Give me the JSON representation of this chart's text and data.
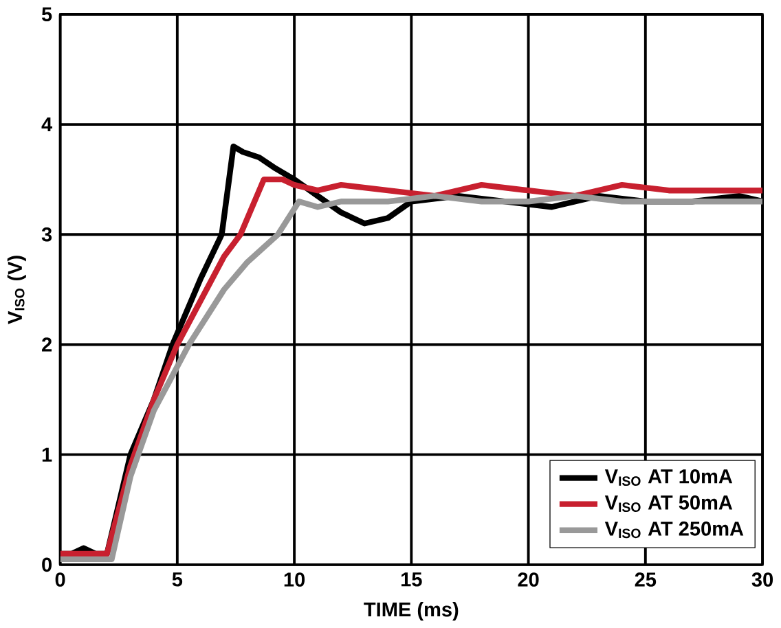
{
  "chart_data": {
    "type": "line",
    "xlabel": "TIME (ms)",
    "ylabel": "V$_{ISO}$ (V)",
    "xlim": [
      0,
      30
    ],
    "ylim": [
      0,
      5
    ],
    "xticks": [
      0,
      5,
      10,
      15,
      20,
      25,
      30
    ],
    "yticks": [
      0,
      1,
      2,
      3,
      4,
      5
    ],
    "grid": true,
    "legend": "bottom right",
    "line_style": "solid",
    "marker": "none",
    "series": [
      {
        "name": "V$_{ISO}$ AT 10mA",
        "color": "#000000",
        "x": [
          0,
          0.5,
          1,
          1.5,
          2,
          3,
          4,
          4.8,
          6,
          6.9,
          7.4,
          7.8,
          8.5,
          9.2,
          10,
          11,
          12,
          13,
          14,
          15,
          17,
          19,
          21,
          23,
          25,
          27,
          29,
          30
        ],
        "values": [
          0.1,
          0.1,
          0.15,
          0.1,
          0.1,
          1.0,
          1.5,
          2.0,
          2.6,
          3.0,
          3.8,
          3.75,
          3.7,
          3.6,
          3.5,
          3.35,
          3.2,
          3.1,
          3.15,
          3.3,
          3.35,
          3.3,
          3.25,
          3.35,
          3.3,
          3.3,
          3.35,
          3.3
        ]
      },
      {
        "name": "V$_{ISO}$ AT 50mA",
        "color": "#c8202f",
        "x": [
          0,
          1,
          2,
          3,
          4,
          5,
          6,
          7,
          7.7,
          8.7,
          9.5,
          10,
          11,
          12,
          14,
          16,
          18,
          20,
          22,
          24,
          26,
          28,
          30
        ],
        "values": [
          0.1,
          0.1,
          0.1,
          0.9,
          1.5,
          2.0,
          2.4,
          2.8,
          3.0,
          3.5,
          3.5,
          3.45,
          3.4,
          3.45,
          3.4,
          3.35,
          3.45,
          3.4,
          3.35,
          3.45,
          3.4,
          3.4,
          3.4
        ]
      },
      {
        "name": "V$_{ISO}$ AT 250mA",
        "color": "#999999",
        "x": [
          0,
          1,
          2.2,
          3,
          4,
          5.5,
          7,
          8,
          9.3,
          10.2,
          11,
          12,
          14,
          16,
          18,
          20,
          22,
          24,
          26,
          28,
          30
        ],
        "values": [
          0.05,
          0.05,
          0.05,
          0.8,
          1.4,
          2.0,
          2.5,
          2.75,
          3.0,
          3.3,
          3.25,
          3.3,
          3.3,
          3.35,
          3.3,
          3.3,
          3.35,
          3.3,
          3.3,
          3.3,
          3.3
        ]
      }
    ]
  }
}
